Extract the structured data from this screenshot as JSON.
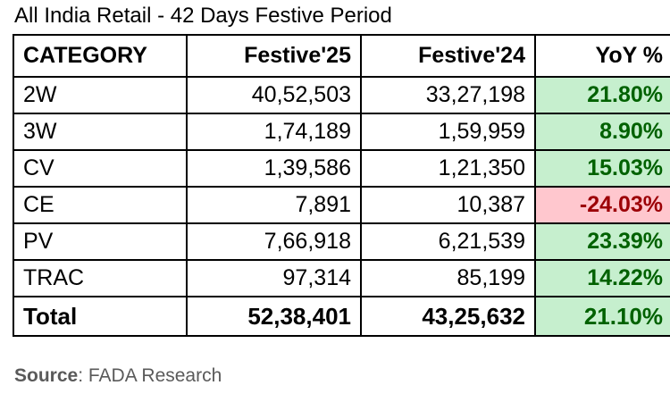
{
  "title": "All India Retail - 42 Days Festive Period",
  "table": {
    "headers": {
      "category": "CATEGORY",
      "festive25": "Festive'25",
      "festive24": "Festive'24",
      "yoy": "YoY %"
    },
    "rows": [
      {
        "category": "2W",
        "festive25": "40,52,503",
        "festive24": "33,27,198",
        "yoy": "21.80%"
      },
      {
        "category": "3W",
        "festive25": "1,74,189",
        "festive24": "1,59,959",
        "yoy": "8.90%"
      },
      {
        "category": "CV",
        "festive25": "1,39,586",
        "festive24": "1,21,350",
        "yoy": "15.03%"
      },
      {
        "category": "CE",
        "festive25": "7,891",
        "festive24": "10,387",
        "yoy": "-24.03%"
      },
      {
        "category": "PV",
        "festive25": "7,66,918",
        "festive24": "6,21,539",
        "yoy": "23.39%"
      },
      {
        "category": "TRAC",
        "festive25": "97,314",
        "festive24": "85,199",
        "yoy": "14.22%"
      }
    ],
    "total": {
      "category": "Total",
      "festive25": "52,38,401",
      "festive24": "43,25,632",
      "yoy": "21.10%"
    }
  },
  "colors": {
    "positive_bg": "#c6efce",
    "positive_text": "#006100",
    "negative_bg": "#ffc7ce",
    "negative_text": "#9c0006"
  },
  "source": {
    "label": "Source",
    "separator": ": ",
    "text": "FADA Research"
  }
}
